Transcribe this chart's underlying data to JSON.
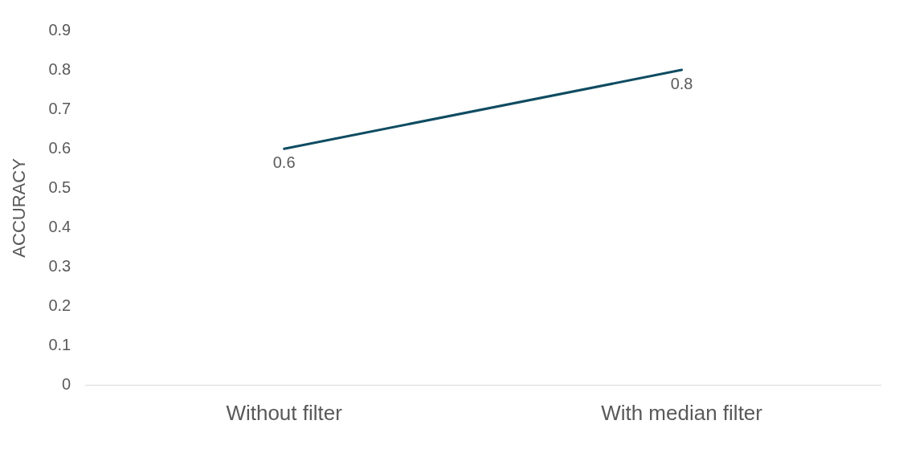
{
  "chart_data": {
    "type": "line",
    "ylabel": "ACCURACY",
    "categories": [
      "Without filter",
      "With median filter"
    ],
    "series": [
      {
        "color": "#0f4c62",
        "values": [
          0.6,
          0.8
        ]
      }
    ],
    "ylim": [
      0,
      0.9
    ],
    "yticks": [
      0,
      0.1,
      0.2,
      0.3,
      0.4,
      0.5,
      0.6,
      0.7,
      0.8,
      0.9
    ],
    "grid": false,
    "legend": false,
    "marker": "none",
    "line_style": "solid",
    "data_labels": true
  }
}
